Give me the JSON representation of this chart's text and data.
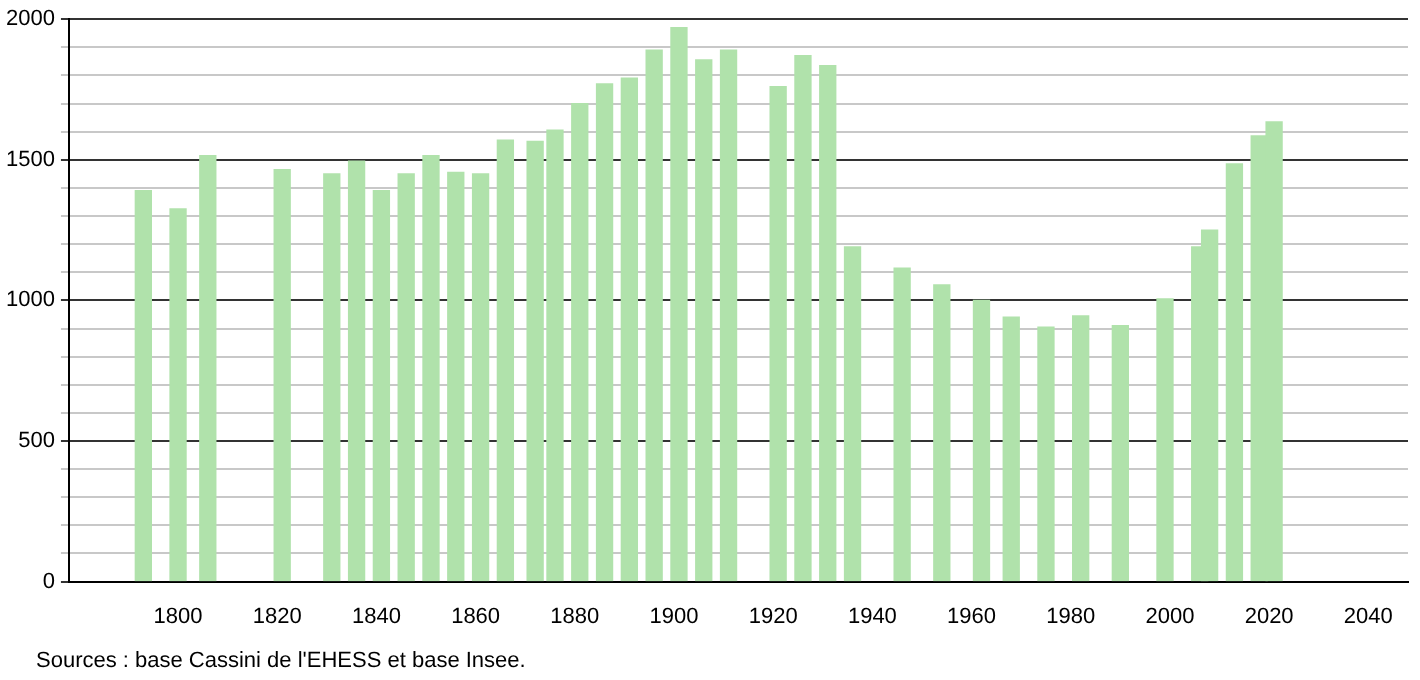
{
  "chart_data": {
    "type": "bar",
    "x": [
      1793,
      1800,
      1806,
      1821,
      1831,
      1836,
      1841,
      1846,
      1851,
      1856,
      1861,
      1866,
      1872,
      1876,
      1881,
      1886,
      1891,
      1896,
      1901,
      1906,
      1911,
      1921,
      1926,
      1931,
      1936,
      1946,
      1954,
      1962,
      1968,
      1975,
      1982,
      1990,
      1999,
      2006,
      2008,
      2013,
      2018,
      2021
    ],
    "values": [
      1390,
      1325,
      1515,
      1465,
      1450,
      1495,
      1390,
      1450,
      1515,
      1455,
      1450,
      1570,
      1565,
      1605,
      1700,
      1770,
      1790,
      1890,
      1970,
      1855,
      1890,
      1760,
      1870,
      1835,
      1190,
      1115,
      1055,
      1000,
      940,
      905,
      945,
      910,
      1005,
      1190,
      1250,
      1485,
      1585,
      1635
    ],
    "color": "#b0e2ab",
    "xlim": [
      1778,
      2048
    ],
    "xticks": [
      1800,
      1820,
      1840,
      1860,
      1880,
      1900,
      1920,
      1940,
      1960,
      1980,
      2000,
      2020,
      2040
    ],
    "ylim": [
      0,
      2000
    ],
    "yticks": [
      0,
      {
        "value": 100,
        "label": null
      },
      {
        "value": 200,
        "label": null
      },
      {
        "value": 300,
        "label": null
      },
      {
        "value": 400,
        "label": null
      },
      500,
      {
        "value": 600,
        "label": null
      },
      {
        "value": 700,
        "label": null
      },
      {
        "value": 800,
        "label": null
      },
      {
        "value": 900,
        "label": null
      },
      1000,
      {
        "value": 1100,
        "label": null
      },
      {
        "value": 1200,
        "label": null
      },
      {
        "value": 1300,
        "label": null
      },
      {
        "value": 1400,
        "label": null
      },
      1500,
      {
        "value": 1600,
        "label": null
      },
      {
        "value": 1700,
        "label": null
      },
      {
        "value": 1800,
        "label": null
      },
      {
        "value": 1900,
        "label": null
      },
      2000
    ],
    "grid": "y",
    "annotations": [
      "Sources : base Cassini de l'EHESS et base Insee."
    ]
  }
}
